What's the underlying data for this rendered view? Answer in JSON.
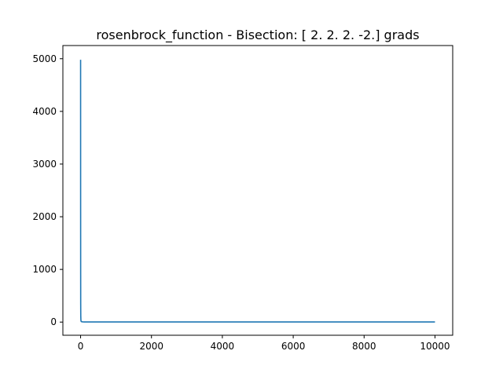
{
  "chart_data": {
    "type": "line",
    "title": "rosenbrock_function - Bisection: [ 2.  2.  2. -2.] grads",
    "xlabel": "",
    "ylabel": "",
    "xlim": [
      -500,
      10500
    ],
    "ylim": [
      -250,
      5250
    ],
    "x_ticks": [
      0,
      2000,
      4000,
      6000,
      8000,
      10000
    ],
    "x_tick_labels": [
      "0",
      "2000",
      "4000",
      "6000",
      "8000",
      "10000"
    ],
    "y_ticks": [
      0,
      1000,
      2000,
      3000,
      4000,
      5000
    ],
    "y_tick_labels": [
      "0",
      "1000",
      "2000",
      "3000",
      "4000",
      "5000"
    ],
    "grid": false,
    "series": [
      {
        "color": "#1f77b4",
        "x": [
          0,
          1,
          2,
          3,
          5,
          8,
          12,
          20,
          35,
          60,
          100,
          200,
          500,
          1000,
          2000,
          4000,
          6000,
          8000,
          10000
        ],
        "y": [
          4980,
          2200,
          900,
          350,
          120,
          45,
          20,
          10,
          6,
          4,
          3,
          2.5,
          2.2,
          2,
          2,
          2,
          2,
          2,
          2
        ]
      }
    ]
  }
}
